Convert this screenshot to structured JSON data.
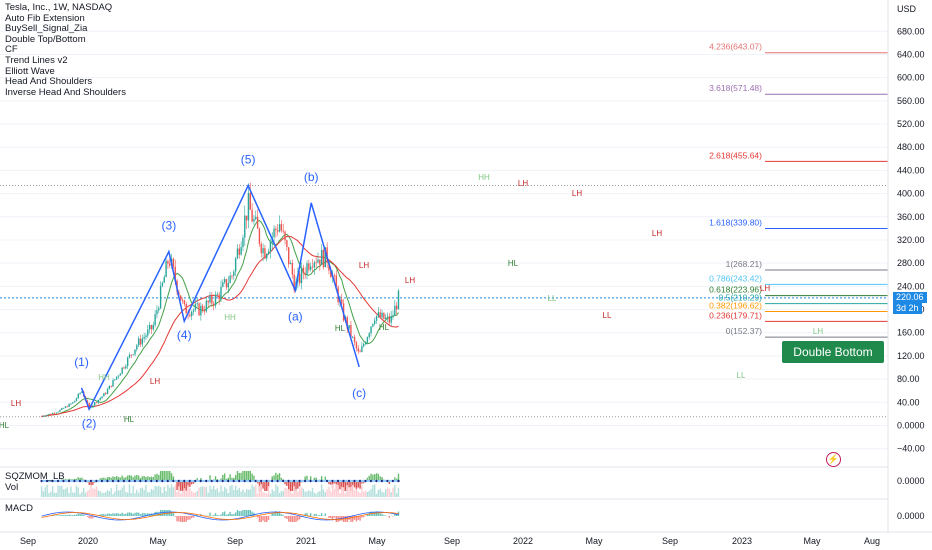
{
  "legend": {
    "title": "Tesla, Inc., 1W, NASDAQ",
    "indicators": [
      "Auto Fib Extension",
      "BuySell_Signal_Zia",
      "Double Top/Bottom",
      "CF",
      "Trend Lines v2",
      "Elliott Wave",
      "Head And Shoulders",
      "Inverse Head And Shoulders"
    ]
  },
  "panes": {
    "sqz_label": "SQZMOM_LB",
    "vol_label": "Vol",
    "macd_label": "MACD",
    "sqz_value": "0.0000",
    "macd_value": "0.0000"
  },
  "price_axis": {
    "currency": "USD",
    "ticks": [
      680,
      640,
      600,
      560,
      520,
      480,
      440,
      400,
      360,
      320,
      280,
      240,
      200,
      160,
      120,
      80,
      40,
      0,
      -40
    ],
    "tick_labels": [
      "680.00",
      "640.00",
      "600.00",
      "560.00",
      "520.00",
      "480.00",
      "440.00",
      "400.00",
      "360.00",
      "320.00",
      "280.00",
      "240.00",
      "200.00",
      "160.00",
      "120.00",
      "80.00",
      "40.00",
      "0.0000",
      "−40.00"
    ]
  },
  "current_price": {
    "value": 220.06,
    "label": "220.06",
    "countdown": "3d 2h"
  },
  "time_axis": {
    "labels": [
      "Sep",
      "2020",
      "May",
      "Sep",
      "2021",
      "May",
      "Sep",
      "2022",
      "May",
      "Sep",
      "2023",
      "May",
      "Aug"
    ]
  },
  "fib_levels": [
    {
      "label": "4.236(643.07)",
      "value": 643.07,
      "color": "#e57373"
    },
    {
      "label": "3.618(571.48)",
      "value": 571.48,
      "color": "#9c6fb0"
    },
    {
      "label": "2.618(455.64)",
      "value": 455.64,
      "color": "#e53935"
    },
    {
      "label": "1.618(339.80)",
      "value": 339.8,
      "color": "#2962ff"
    },
    {
      "label": "1(268.21)",
      "value": 268.21,
      "color": "#787b86"
    },
    {
      "label": "0.786(243.42)",
      "value": 243.42,
      "color": "#4fc3f7"
    },
    {
      "label": "0.618(223.96)",
      "value": 223.96,
      "color": "#2e7d32"
    },
    {
      "label": "0.5(210.29)",
      "value": 210.29,
      "color": "#26a69a"
    },
    {
      "label": "0.382(196.62)",
      "value": 196.62,
      "color": "#ff9800"
    },
    {
      "label": "0.236(179.71)",
      "value": 179.71,
      "color": "#e53935"
    },
    {
      "label": "0(152.37)",
      "value": 152.37,
      "color": "#787b86"
    }
  ],
  "elliott_labels": [
    "(1)",
    "(2)",
    "(3)",
    "(4)",
    "(5)",
    "(a)",
    "(b)",
    "(c)"
  ],
  "swing_labels": [
    "LH",
    "HL",
    "HH",
    "HL",
    "LH",
    "HH",
    "HL",
    "LH",
    "HL",
    "LH",
    "HH",
    "LH",
    "HL",
    "LH",
    "LL",
    "LH",
    "LH",
    "LL",
    "LL",
    "LH"
  ],
  "callout": "Double Bottom",
  "chart_data": {
    "type": "candlestick",
    "title": "Tesla, Inc., 1W, NASDAQ",
    "y_unit": "USD",
    "ylim": [
      -40,
      700
    ],
    "elliott_wave": {
      "points": [
        {
          "label": "(1)",
          "date": "2020-02",
          "price": 65
        },
        {
          "label": "(2)",
          "date": "2020-03",
          "price": 28
        },
        {
          "label": "(3)",
          "date": "2021-01",
          "price": 300
        },
        {
          "label": "(4)",
          "date": "2021-03",
          "price": 180
        },
        {
          "label": "(5)",
          "date": "2021-11",
          "price": 414
        },
        {
          "label": "(a)",
          "date": "2022-05",
          "price": 233
        },
        {
          "label": "(b)",
          "date": "2022-07",
          "price": 384
        },
        {
          "label": "(c)",
          "date": "2023-01",
          "price": 101
        }
      ]
    },
    "weekly_close_approx": [
      {
        "date": "2019-09",
        "price": 16
      },
      {
        "date": "2019-11",
        "price": 24
      },
      {
        "date": "2020-01",
        "price": 40
      },
      {
        "date": "2020-02",
        "price": 60
      },
      {
        "date": "2020-03",
        "price": 30
      },
      {
        "date": "2020-05",
        "price": 55
      },
      {
        "date": "2020-07",
        "price": 95
      },
      {
        "date": "2020-09",
        "price": 140
      },
      {
        "date": "2020-11",
        "price": 170
      },
      {
        "date": "2021-01",
        "price": 290
      },
      {
        "date": "2021-03",
        "price": 200
      },
      {
        "date": "2021-05",
        "price": 200
      },
      {
        "date": "2021-07",
        "price": 220
      },
      {
        "date": "2021-09",
        "price": 260
      },
      {
        "date": "2021-11",
        "price": 380
      },
      {
        "date": "2022-01",
        "price": 300
      },
      {
        "date": "2022-03",
        "price": 350
      },
      {
        "date": "2022-05",
        "price": 240
      },
      {
        "date": "2022-07",
        "price": 290
      },
      {
        "date": "2022-09",
        "price": 290
      },
      {
        "date": "2022-11",
        "price": 190
      },
      {
        "date": "2023-01",
        "price": 120
      },
      {
        "date": "2023-03",
        "price": 190
      },
      {
        "date": "2023-05",
        "price": 180
      },
      {
        "date": "2023-06",
        "price": 220
      }
    ],
    "reference_lines": {
      "dotted_high": 414,
      "dotted_low": 15,
      "current": 220.06
    }
  }
}
